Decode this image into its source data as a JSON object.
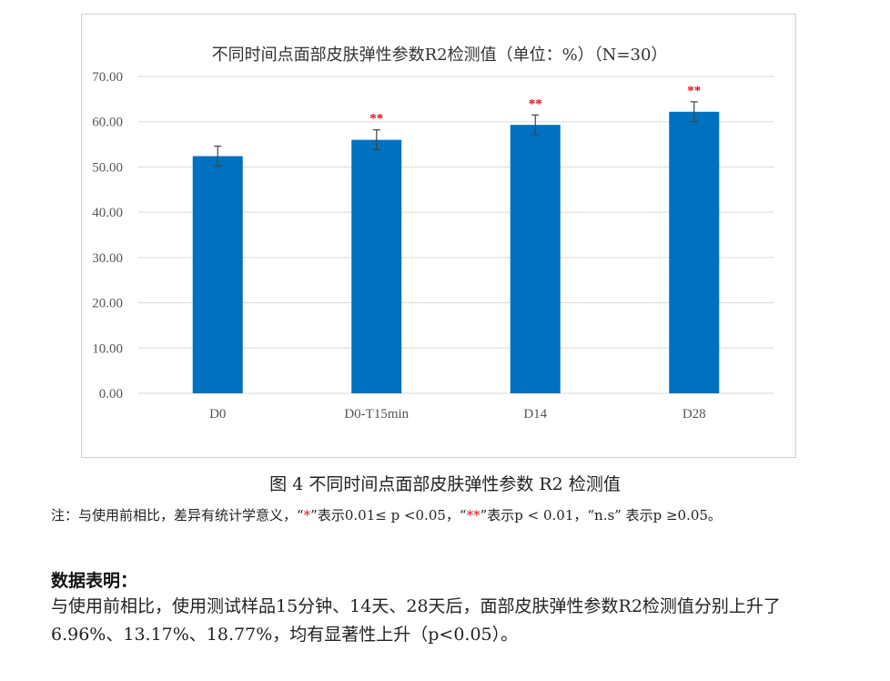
{
  "chart_data": {
    "type": "bar",
    "title": "不同时间点面部皮肤弹性参数R2检测值（单位：%）（N=30）",
    "categories": [
      "D0",
      "D0-T15min",
      "D14",
      "D28"
    ],
    "values": [
      52.4,
      56.0,
      59.3,
      62.2
    ],
    "errors": [
      2.2,
      2.2,
      2.2,
      2.2
    ],
    "significance": [
      "",
      "**",
      "**",
      "**"
    ],
    "ylim": [
      0,
      70
    ],
    "yticks": [
      "0.00",
      "10.00",
      "20.00",
      "30.00",
      "40.00",
      "50.00",
      "60.00",
      "70.00"
    ],
    "xlabel": "",
    "ylabel": "",
    "bar_color": "#0070c0",
    "grid": true
  },
  "caption": "图 4 不同时间点面部皮肤弹性参数 R2 检测值",
  "note": {
    "prefix": "注：与使用前相比，差异有统计学意义，“",
    "star1": "*",
    "mid1": "”表示0.01≤ p <0.05，“",
    "star2": "**",
    "mid2": "”表示p < 0.01，“n.s” 表示p ≥0.05。"
  },
  "data_heading": "数据表明：",
  "data_body": "与使用前相比，使用测试样品15分钟、14天、28天后，面部皮肤弹性参数R2检测值分别上升了6.96%、13.17%、18.77%，均有显著性上升（p<0.05）。",
  "colors": {
    "significance": "#e3101a",
    "grid": "#d9d9d9",
    "error_bar": "#444444"
  }
}
